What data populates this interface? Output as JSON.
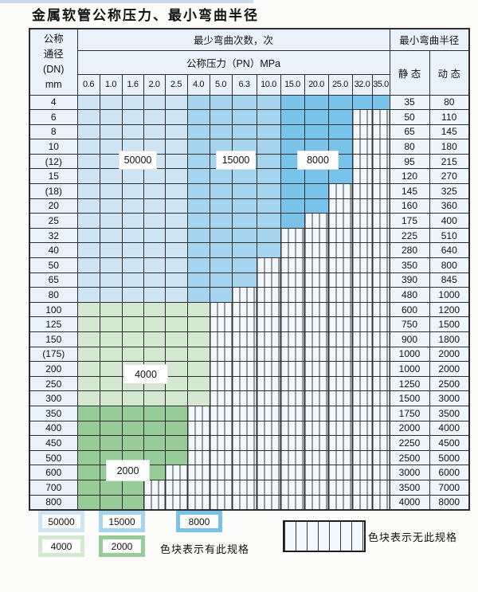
{
  "title": "金属软管公称压力、最小弯曲半径",
  "table": {
    "corner_lines": [
      "公称",
      "通径",
      "(DN)",
      "mm"
    ],
    "bend_cycles_header": "最少弯曲次数，次",
    "pressure_header": "公称压力（PN）MPa",
    "radius_header": "最小弯曲半径",
    "static_label": "静 态",
    "dynamic_label": "动 态",
    "pressures": [
      "0.6",
      "1.0",
      "1.6",
      "2.0",
      "2.5",
      "4.0",
      "5.0",
      "6.3",
      "10.0",
      "15.0",
      "20.0",
      "25.0",
      "32.0",
      "35.0"
    ],
    "rows": [
      {
        "dn": "4",
        "colored": 14,
        "palette": "blue",
        "static": "35",
        "dynamic": "80"
      },
      {
        "dn": "6",
        "colored": 12,
        "palette": "blue",
        "static": "50",
        "dynamic": "110"
      },
      {
        "dn": "8",
        "colored": 12,
        "palette": "blue",
        "static": "65",
        "dynamic": "145"
      },
      {
        "dn": "10",
        "colored": 12,
        "palette": "blue",
        "static": "80",
        "dynamic": "180"
      },
      {
        "dn": "(12)",
        "colored": 12,
        "palette": "blue",
        "static": "95",
        "dynamic": "215"
      },
      {
        "dn": "15",
        "colored": 12,
        "palette": "blue",
        "static": "120",
        "dynamic": "270"
      },
      {
        "dn": "(18)",
        "colored": 11,
        "palette": "blue",
        "static": "145",
        "dynamic": "325"
      },
      {
        "dn": "20",
        "colored": 11,
        "palette": "blue",
        "static": "160",
        "dynamic": "360"
      },
      {
        "dn": "25",
        "colored": 10,
        "palette": "blue",
        "static": "175",
        "dynamic": "400"
      },
      {
        "dn": "32",
        "colored": 9,
        "palette": "blue",
        "static": "225",
        "dynamic": "510"
      },
      {
        "dn": "40",
        "colored": 9,
        "palette": "blue",
        "static": "280",
        "dynamic": "640"
      },
      {
        "dn": "50",
        "colored": 8,
        "palette": "blue",
        "static": "350",
        "dynamic": "800"
      },
      {
        "dn": "65",
        "colored": 8,
        "palette": "blue",
        "static": "390",
        "dynamic": "845"
      },
      {
        "dn": "80",
        "colored": 7,
        "palette": "blue",
        "static": "480",
        "dynamic": "1000"
      },
      {
        "dn": "100",
        "colored": 6,
        "palette": "green-light",
        "static": "600",
        "dynamic": "1200"
      },
      {
        "dn": "125",
        "colored": 6,
        "palette": "green-light",
        "static": "750",
        "dynamic": "1500"
      },
      {
        "dn": "150",
        "colored": 6,
        "palette": "green-light",
        "static": "900",
        "dynamic": "1800"
      },
      {
        "dn": "(175)",
        "colored": 6,
        "palette": "green-light",
        "static": "1000",
        "dynamic": "2000"
      },
      {
        "dn": "200",
        "colored": 6,
        "palette": "green-light",
        "static": "1000",
        "dynamic": "2000"
      },
      {
        "dn": "250",
        "colored": 6,
        "palette": "green-light",
        "static": "1250",
        "dynamic": "2500"
      },
      {
        "dn": "300",
        "colored": 6,
        "palette": "green-light",
        "static": "1500",
        "dynamic": "3000"
      },
      {
        "dn": "350",
        "colored": 5,
        "palette": "green-dark",
        "static": "1750",
        "dynamic": "3500"
      },
      {
        "dn": "400",
        "colored": 5,
        "palette": "green-dark",
        "static": "2000",
        "dynamic": "4000"
      },
      {
        "dn": "450",
        "colored": 5,
        "palette": "green-dark",
        "static": "2250",
        "dynamic": "4500"
      },
      {
        "dn": "500",
        "colored": 5,
        "palette": "green-dark",
        "static": "2500",
        "dynamic": "5000"
      },
      {
        "dn": "600",
        "colored": 4,
        "palette": "green-dark",
        "static": "3000",
        "dynamic": "6000"
      },
      {
        "dn": "700",
        "colored": 3,
        "palette": "green-dark",
        "static": "3500",
        "dynamic": "7000"
      },
      {
        "dn": "800",
        "colored": 3,
        "palette": "green-dark",
        "static": "4000",
        "dynamic": "8000"
      }
    ]
  },
  "zone_labels": [
    {
      "value": "50000"
    },
    {
      "value": "15000"
    },
    {
      "value": "8000"
    },
    {
      "value": "4000"
    },
    {
      "value": "2000"
    }
  ],
  "legend": {
    "swatches": [
      {
        "value": "50000",
        "colorKey": "b1"
      },
      {
        "value": "15000",
        "colorKey": "b2"
      },
      {
        "value": "8000",
        "colorKey": "b3"
      },
      {
        "value": "4000",
        "colorKey": "g1"
      },
      {
        "value": "2000",
        "colorKey": "g2"
      }
    ],
    "has_spec_text": "色块表示有此规格",
    "no_spec_text": "色块表示无此规格"
  },
  "colors": {
    "pagebg": "#fcfcfa",
    "strip": "#ccdaea",
    "border": "#2e2e2e",
    "head": "#e9f2fa",
    "rad": "#eef5fb",
    "b1": "#cfe5f4",
    "b2": "#a6d4ef",
    "b3": "#79c2e9",
    "g1": "#d5e8d1",
    "g2": "#97cb97",
    "hatchbg": "#f2f7fc",
    "hatchline": "#3c3c3c"
  }
}
